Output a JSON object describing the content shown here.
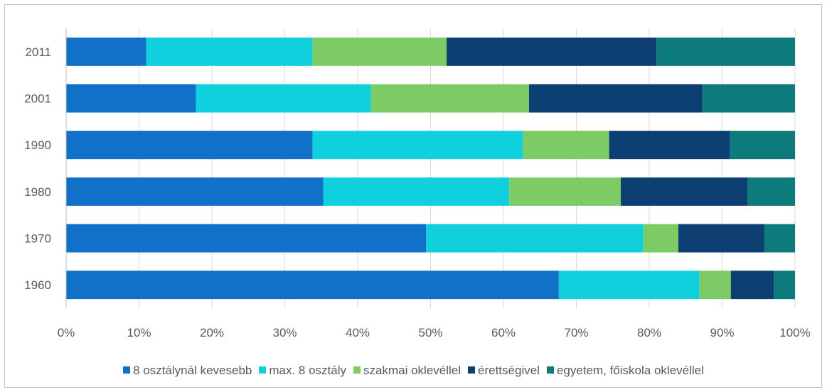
{
  "chart_data": {
    "type": "bar",
    "orientation": "horizontal",
    "stacked": "percent",
    "categories": [
      "2011",
      "2001",
      "1990",
      "1980",
      "1970",
      "1960"
    ],
    "series": [
      {
        "name": "8 osztálynál kevesebb",
        "color": "#1170c8",
        "values": [
          11.0,
          17.8,
          33.8,
          35.3,
          49.4,
          67.6
        ]
      },
      {
        "name": "max. 8 osztály",
        "color": "#0fd0dc",
        "values": [
          22.8,
          24.0,
          28.9,
          25.5,
          29.8,
          19.3
        ]
      },
      {
        "name": "szakmai oklevéllel",
        "color": "#7dcb64",
        "values": [
          18.4,
          21.7,
          11.8,
          15.3,
          4.8,
          4.3
        ]
      },
      {
        "name": "érettségivel",
        "color": "#0e3f73",
        "values": [
          28.8,
          23.8,
          16.6,
          17.4,
          11.8,
          5.9
        ]
      },
      {
        "name": "egyetem, főiskola oklevéllel",
        "color": "#0d7b7c",
        "values": [
          19.0,
          12.7,
          8.9,
          6.5,
          4.2,
          2.9
        ]
      }
    ],
    "x_ticks": [
      "0%",
      "10%",
      "20%",
      "30%",
      "40%",
      "50%",
      "60%",
      "70%",
      "80%",
      "90%",
      "100%"
    ],
    "xlim": [
      0,
      100
    ],
    "grid": "vertical",
    "legend_position": "bottom",
    "title": "",
    "xlabel": "",
    "ylabel": ""
  }
}
